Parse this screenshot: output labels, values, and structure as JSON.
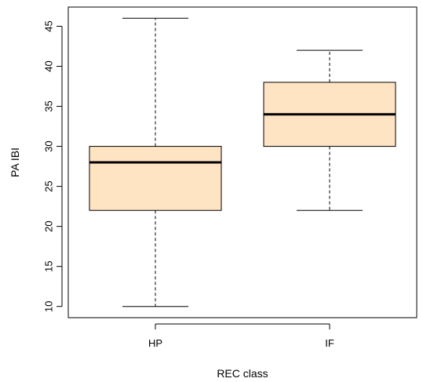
{
  "chart_data": {
    "type": "boxplot",
    "xlabel": "REC class",
    "ylabel": "PA IBI",
    "ylim": [
      8.6,
      47.4
    ],
    "yticks": [
      10,
      15,
      20,
      25,
      30,
      35,
      40,
      45
    ],
    "ytick_labels": [
      "10",
      "15",
      "20",
      "25",
      "30",
      "35",
      "40",
      "45"
    ],
    "categories": [
      "HP",
      "IF"
    ],
    "boxes": [
      {
        "category": "HP",
        "whisker_low": 10,
        "q1": 22,
        "median": 28,
        "q3": 30,
        "whisker_high": 46
      },
      {
        "category": "IF",
        "whisker_low": 22,
        "q1": 30,
        "median": 34,
        "q3": 38,
        "whisker_high": 42
      }
    ],
    "box_fill": "#ffe4c4",
    "line_color": "#000000",
    "grid": false,
    "legend": "none"
  }
}
